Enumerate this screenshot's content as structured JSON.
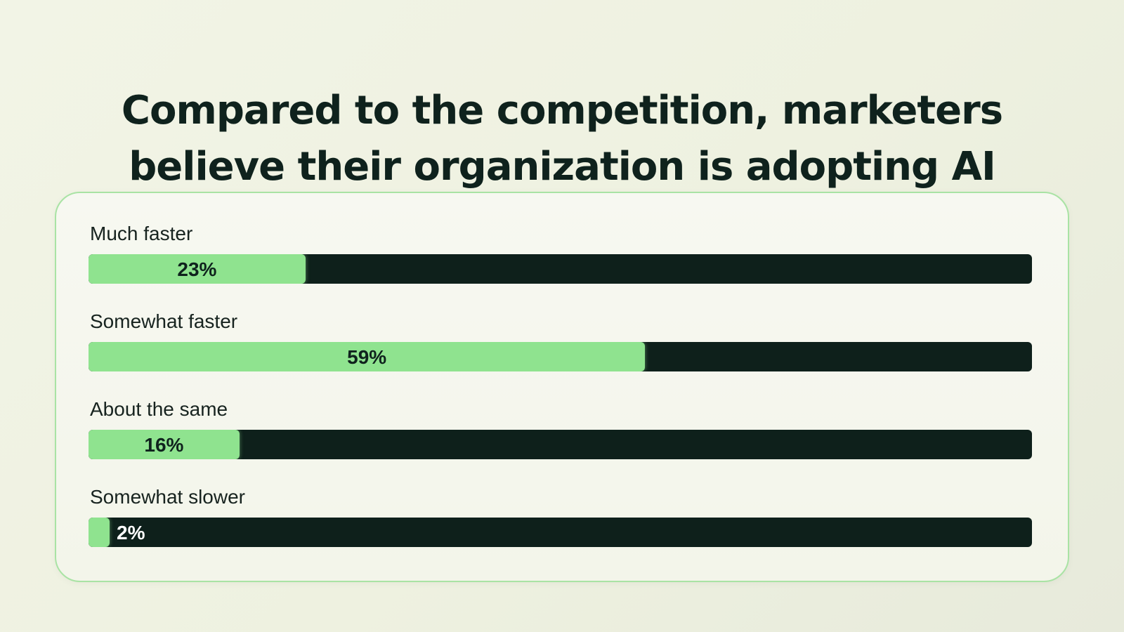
{
  "title_lines": [
    "Compared to the competition, marketers",
    "believe their organization is adopting AI"
  ],
  "colors": {
    "background": "#f0f2e4",
    "card_border": "#a9e3a4",
    "bar_track": "#0e201b",
    "bar_fill": "#8fe38f",
    "title_text": "#0f221d"
  },
  "chart_data": {
    "type": "bar",
    "orientation": "horizontal",
    "title": "Compared to the competition, marketers believe their organization is adopting AI",
    "categories": [
      "Much faster",
      "Somewhat faster",
      "About the same",
      "Somewhat slower"
    ],
    "values": [
      23,
      59,
      16,
      2
    ],
    "value_labels": [
      "23%",
      "59%",
      "16%",
      "2%"
    ],
    "unit": "%",
    "xlim": [
      0,
      100
    ],
    "grid": false,
    "legend": "none"
  }
}
